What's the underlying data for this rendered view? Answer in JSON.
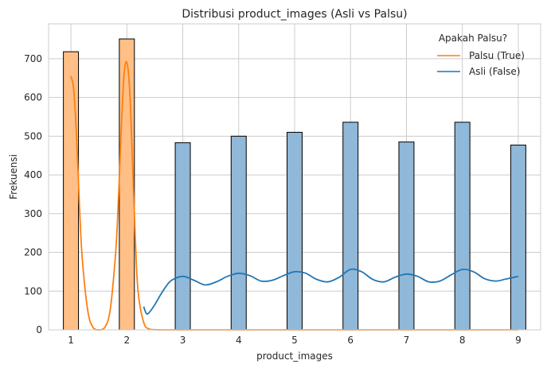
{
  "chart_data": {
    "type": "bar",
    "title": "Distribusi product_images (Asli vs Palsu)",
    "xlabel": "product_images",
    "ylabel": "Frekuensi",
    "xlim": [
      0.6,
      9.4
    ],
    "ylim": [
      0,
      790
    ],
    "xticks": [
      1,
      2,
      3,
      4,
      5,
      6,
      7,
      8,
      9
    ],
    "yticks": [
      0,
      100,
      200,
      300,
      400,
      500,
      600,
      700
    ],
    "grid": true,
    "legend": {
      "title": "Apakah Palsu?",
      "placement": "top-right",
      "entries": [
        {
          "label": "Palsu (True)",
          "color": "#ff7f0e"
        },
        {
          "label": "Asli (False)",
          "color": "#1f77b4"
        }
      ]
    },
    "bar_width": 0.27,
    "series": [
      {
        "key": "palsu",
        "legend_label": "Palsu (True)",
        "color": "#ff7f0e",
        "fill": "#ffbf86",
        "x": [
          1,
          2
        ],
        "values": [
          718,
          751
        ]
      },
      {
        "key": "asli",
        "legend_label": "Asli (False)",
        "color": "#1f77b4",
        "fill": "#8fb8d9",
        "x": [
          3,
          4,
          5,
          6,
          7,
          8,
          9
        ],
        "values": [
          483,
          500,
          510,
          536,
          485,
          536,
          477
        ]
      }
    ],
    "kde": [
      {
        "key": "palsu-kde",
        "color": "#ff7f0e",
        "x": [
          1.0,
          1.05,
          1.1,
          1.15,
          1.2,
          1.3,
          1.4,
          1.5,
          1.6,
          1.7,
          1.8,
          1.85,
          1.9,
          1.95,
          2.0,
          2.05,
          2.1,
          2.15,
          2.2,
          2.3,
          2.4,
          2.6,
          3.0,
          4.0,
          5.0,
          6.0,
          7.0,
          8.0,
          9.0
        ],
        "y": [
          655,
          620,
          500,
          330,
          190,
          50,
          5,
          0,
          5,
          50,
          200,
          340,
          520,
          660,
          690,
          620,
          440,
          240,
          100,
          20,
          2,
          0,
          0,
          0,
          0,
          0,
          0,
          0,
          0
        ]
      },
      {
        "key": "asli-kde",
        "color": "#1f77b4",
        "x": [
          2.3,
          2.35,
          2.4,
          2.5,
          2.6,
          2.7,
          2.8,
          3.0,
          3.2,
          3.4,
          3.6,
          3.8,
          4.0,
          4.2,
          4.4,
          4.6,
          4.8,
          5.0,
          5.2,
          5.4,
          5.6,
          5.8,
          6.0,
          6.2,
          6.4,
          6.6,
          6.8,
          7.0,
          7.2,
          7.4,
          7.6,
          7.8,
          8.0,
          8.2,
          8.4,
          8.6,
          8.8,
          9.0
        ],
        "y": [
          60,
          42,
          45,
          65,
          90,
          112,
          128,
          138,
          128,
          116,
          124,
          138,
          146,
          140,
          126,
          128,
          140,
          150,
          146,
          130,
          124,
          136,
          156,
          150,
          130,
          124,
          136,
          144,
          138,
          124,
          126,
          142,
          156,
          150,
          132,
          126,
          132,
          138
        ]
      }
    ]
  }
}
